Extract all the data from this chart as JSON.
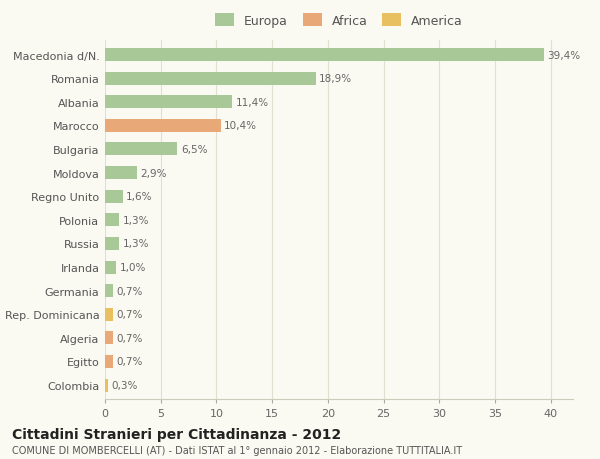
{
  "categories": [
    "Macedonia d/N.",
    "Romania",
    "Albania",
    "Marocco",
    "Bulgaria",
    "Moldova",
    "Regno Unito",
    "Polonia",
    "Russia",
    "Irlanda",
    "Germania",
    "Rep. Dominicana",
    "Algeria",
    "Egitto",
    "Colombia"
  ],
  "values": [
    39.4,
    18.9,
    11.4,
    10.4,
    6.5,
    2.9,
    1.6,
    1.3,
    1.3,
    1.0,
    0.7,
    0.7,
    0.7,
    0.7,
    0.3
  ],
  "labels": [
    "39,4%",
    "18,9%",
    "11,4%",
    "10,4%",
    "6,5%",
    "2,9%",
    "1,6%",
    "1,3%",
    "1,3%",
    "1,0%",
    "0,7%",
    "0,7%",
    "0,7%",
    "0,7%",
    "0,3%"
  ],
  "continents": [
    "Europa",
    "Europa",
    "Europa",
    "Africa",
    "Europa",
    "Europa",
    "Europa",
    "Europa",
    "Europa",
    "Europa",
    "Europa",
    "America",
    "Africa",
    "Africa",
    "America"
  ],
  "colors": {
    "Europa": "#a8c898",
    "Africa": "#e8a878",
    "America": "#e8c060"
  },
  "legend_order": [
    "Europa",
    "Africa",
    "America"
  ],
  "xlim": [
    0,
    42
  ],
  "xticks": [
    0,
    5,
    10,
    15,
    20,
    25,
    30,
    35,
    40
  ],
  "title": "Cittadini Stranieri per Cittadinanza - 2012",
  "subtitle": "COMUNE DI MOMBERCELLI (AT) - Dati ISTAT al 1° gennaio 2012 - Elaborazione TUTTITALIA.IT",
  "bg_color": "#fafaf2",
  "grid_color": "#e0e0d0",
  "bar_height": 0.55,
  "label_fontsize": 7.5,
  "ytick_fontsize": 8,
  "xtick_fontsize": 8,
  "legend_fontsize": 9,
  "title_fontsize": 10,
  "subtitle_fontsize": 7
}
